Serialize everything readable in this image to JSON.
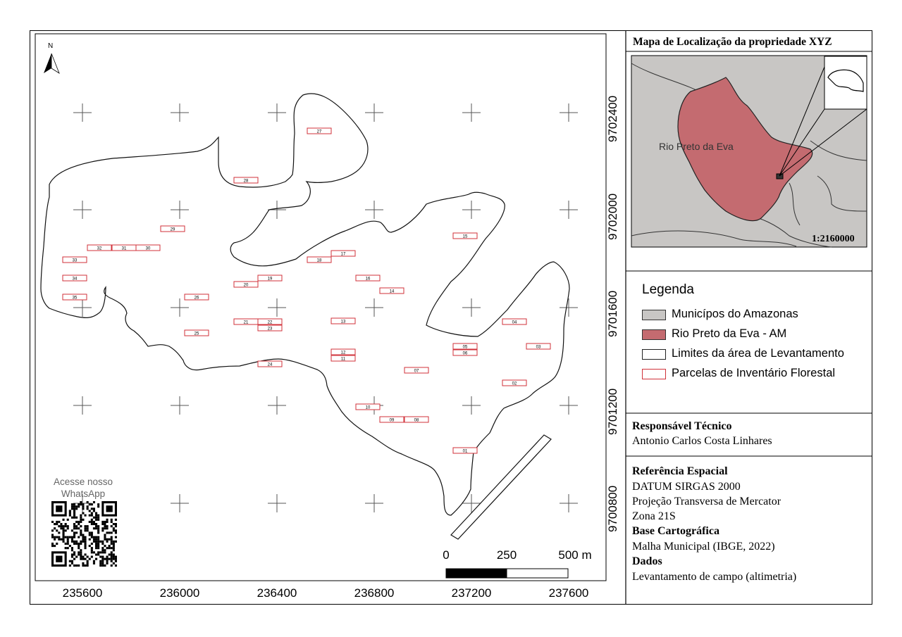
{
  "main_map": {
    "north_label": "N",
    "x_ticks": [
      "235600",
      "236000",
      "236400",
      "236800",
      "237200",
      "237600"
    ],
    "y_ticks": [
      "9700800",
      "9701200",
      "9701600",
      "9702000",
      "9702400"
    ],
    "scale": {
      "labels": [
        "0",
        "250",
        "500 m"
      ]
    },
    "plots": [
      "01",
      "02",
      "03",
      "04",
      "05",
      "06",
      "07",
      "08",
      "09",
      "10",
      "11",
      "12",
      "13",
      "14",
      "15",
      "16",
      "17",
      "18",
      "19",
      "20",
      "21",
      "22",
      "23",
      "24",
      "25",
      "26",
      "27",
      "28",
      "29",
      "30",
      "31",
      "32",
      "33",
      "34",
      "35"
    ],
    "whatsapp": {
      "line1": "Acesse nosso",
      "line2": "WhatsApp"
    }
  },
  "inset": {
    "title": "Mapa de Localização da propriedade XYZ",
    "place_label": "Rio Preto da Eva",
    "scale": "1:2160000"
  },
  "legend": {
    "title": "Legenda",
    "items": [
      {
        "label": "Municípos do Amazonas",
        "fill": "#c8c6c4",
        "stroke": "#333333"
      },
      {
        "label": "Rio Preto da Eva - AM",
        "fill": "#c46b70",
        "stroke": "#333333"
      },
      {
        "label": "Limites da área de Levantamento",
        "fill": "#ffffff",
        "stroke": "#222222"
      },
      {
        "label": "Parcelas de Inventário Florestal",
        "fill": "#ffffff",
        "stroke": "#d0323a"
      }
    ]
  },
  "responsavel": {
    "heading": "Responsável Técnico",
    "name": "Antonio Carlos Costa Linhares"
  },
  "referencia": {
    "heading": "Referência Espacial",
    "lines": [
      "DATUM SIRGAS 2000",
      "Projeção Transversa de Mercator",
      "Zona 21S"
    ],
    "base_heading": "Base Cartográfica",
    "base_value": "Malha Municipal (IBGE, 2022)",
    "dados_heading": "Dados",
    "dados_value": "Levantamento de campo (altimetria)"
  },
  "colors": {
    "plot_stroke": "#d0323a",
    "municipio_fill": "#c8c6c4",
    "rpe_fill": "#c46b70"
  }
}
